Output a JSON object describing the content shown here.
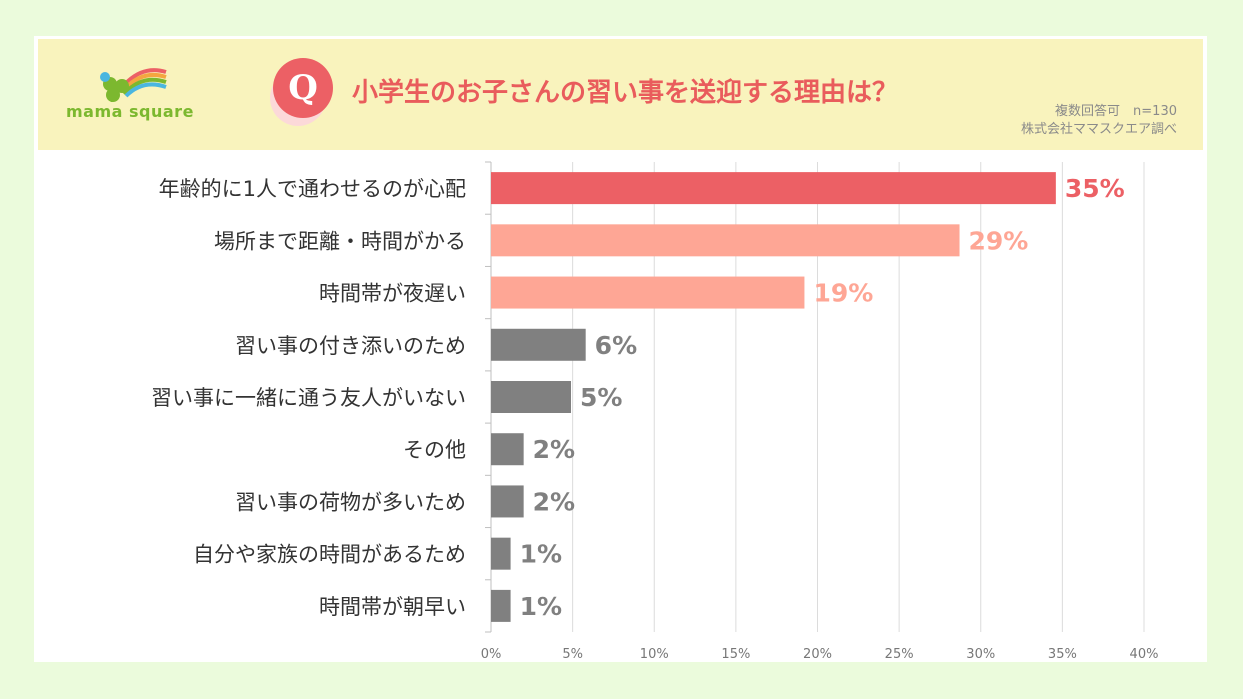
{
  "header": {
    "logo_text": "mama square",
    "q_mark": "Q",
    "title": "小学生のお子さんの習い事を送迎する理由は？",
    "note_line1": "複数回答可　n=130",
    "note_line2": "株式会社ママスクエア調べ"
  },
  "colors": {
    "background": "#ebfbdc",
    "header_bg": "#f9f3bd",
    "accent_red": "#ec6065",
    "accent_salmon": "#fea695",
    "gray_bar": "#808080"
  },
  "chart_data": {
    "type": "bar",
    "orientation": "horizontal",
    "categories": [
      "年齢的に1人で通わせるのが心配",
      "場所まで距離・時間がかる",
      "時間帯が夜遅い",
      "習い事の付き添いのため",
      "習い事に一緒に通う友人がいない",
      "その他",
      "習い事の荷物が多いため",
      "自分や家族の時間があるため",
      "時間帯が朝早い"
    ],
    "values": [
      34.6,
      28.7,
      19.2,
      5.8,
      4.9,
      2.0,
      2.0,
      1.2,
      1.2
    ],
    "value_labels": [
      "35%",
      "29%",
      "19%",
      "6%",
      "5%",
      "2%",
      "2%",
      "1%",
      "1%"
    ],
    "bar_colors": [
      "#ec6065",
      "#fea695",
      "#fea695",
      "#808080",
      "#808080",
      "#808080",
      "#808080",
      "#808080",
      "#808080"
    ],
    "label_colors": [
      "#ec6065",
      "#fea695",
      "#fea695",
      "#808080",
      "#808080",
      "#808080",
      "#808080",
      "#808080",
      "#808080"
    ],
    "x_ticks": [
      "0%",
      "5%",
      "10%",
      "15%",
      "20%",
      "25%",
      "30%",
      "35%",
      "40%"
    ],
    "xlim": [
      0,
      40
    ],
    "grid": true
  }
}
